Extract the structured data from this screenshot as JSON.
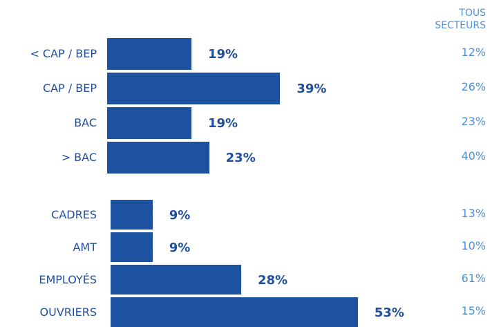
{
  "chart_data": {
    "type": "bar",
    "orientation": "horizontal",
    "header": [
      "TOUS",
      "SECTEURS"
    ],
    "groups": [
      {
        "categories": [
          "< CAP / BEP",
          "CAP / BEP",
          "BAC",
          "> BAC"
        ],
        "values": [
          19,
          39,
          19,
          23
        ],
        "value_labels": [
          "19%",
          "39%",
          "19%",
          "23%"
        ],
        "reference_values": [
          12,
          26,
          23,
          40
        ],
        "reference_labels": [
          "12%",
          "26%",
          "23%",
          "40%"
        ]
      },
      {
        "categories": [
          "CADRES",
          "AMT",
          "EMPLOYÉS",
          "OUVRIERS"
        ],
        "values": [
          9,
          9,
          28,
          53
        ],
        "value_labels": [
          "9%",
          "9%",
          "28%",
          "53%"
        ],
        "reference_values": [
          13,
          10,
          61,
          15
        ],
        "reference_labels": [
          "13%",
          "10%",
          "61%",
          "15%"
        ]
      }
    ],
    "colors": {
      "bar": "#1c52a0",
      "value_text": "#1f4f9c",
      "category_text": "#1f4f9c",
      "reference_text": "#4a90d9"
    }
  }
}
